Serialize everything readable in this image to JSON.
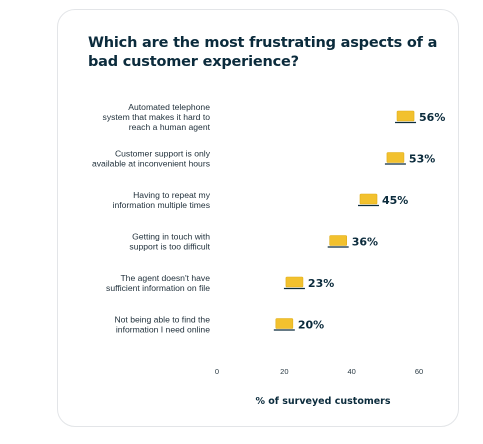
{
  "card": {
    "title": "Which are the most frustrating aspects of a bad customer experience?"
  },
  "colors": {
    "marker": "#f2c12e",
    "marker_stroke": "#e0ad17",
    "text": "#0b2b3c"
  },
  "chart_data": {
    "type": "scatter",
    "title": "Which are the most frustrating aspects of a bad customer experience?",
    "xlabel": "% of surveyed customers",
    "ylabel": "",
    "xlim": [
      0,
      60
    ],
    "xticks": [
      0,
      20,
      40,
      60
    ],
    "grid": false,
    "categories": [
      [
        "Automated telephone",
        "system that makes it hard to",
        "reach a human agent"
      ],
      [
        "Customer support is only",
        "available at inconvenient hours"
      ],
      [
        "Having to repeat my",
        "information multiple times"
      ],
      [
        "Getting in touch with",
        "support is too difficult"
      ],
      [
        "The agent doesn't have",
        "sufficient information on file"
      ],
      [
        "Not being able to find the",
        "information I need online"
      ]
    ],
    "values": [
      56,
      53,
      45,
      36,
      23,
      20
    ],
    "value_labels": [
      "56%",
      "53%",
      "45%",
      "36%",
      "23%",
      "20%"
    ]
  }
}
